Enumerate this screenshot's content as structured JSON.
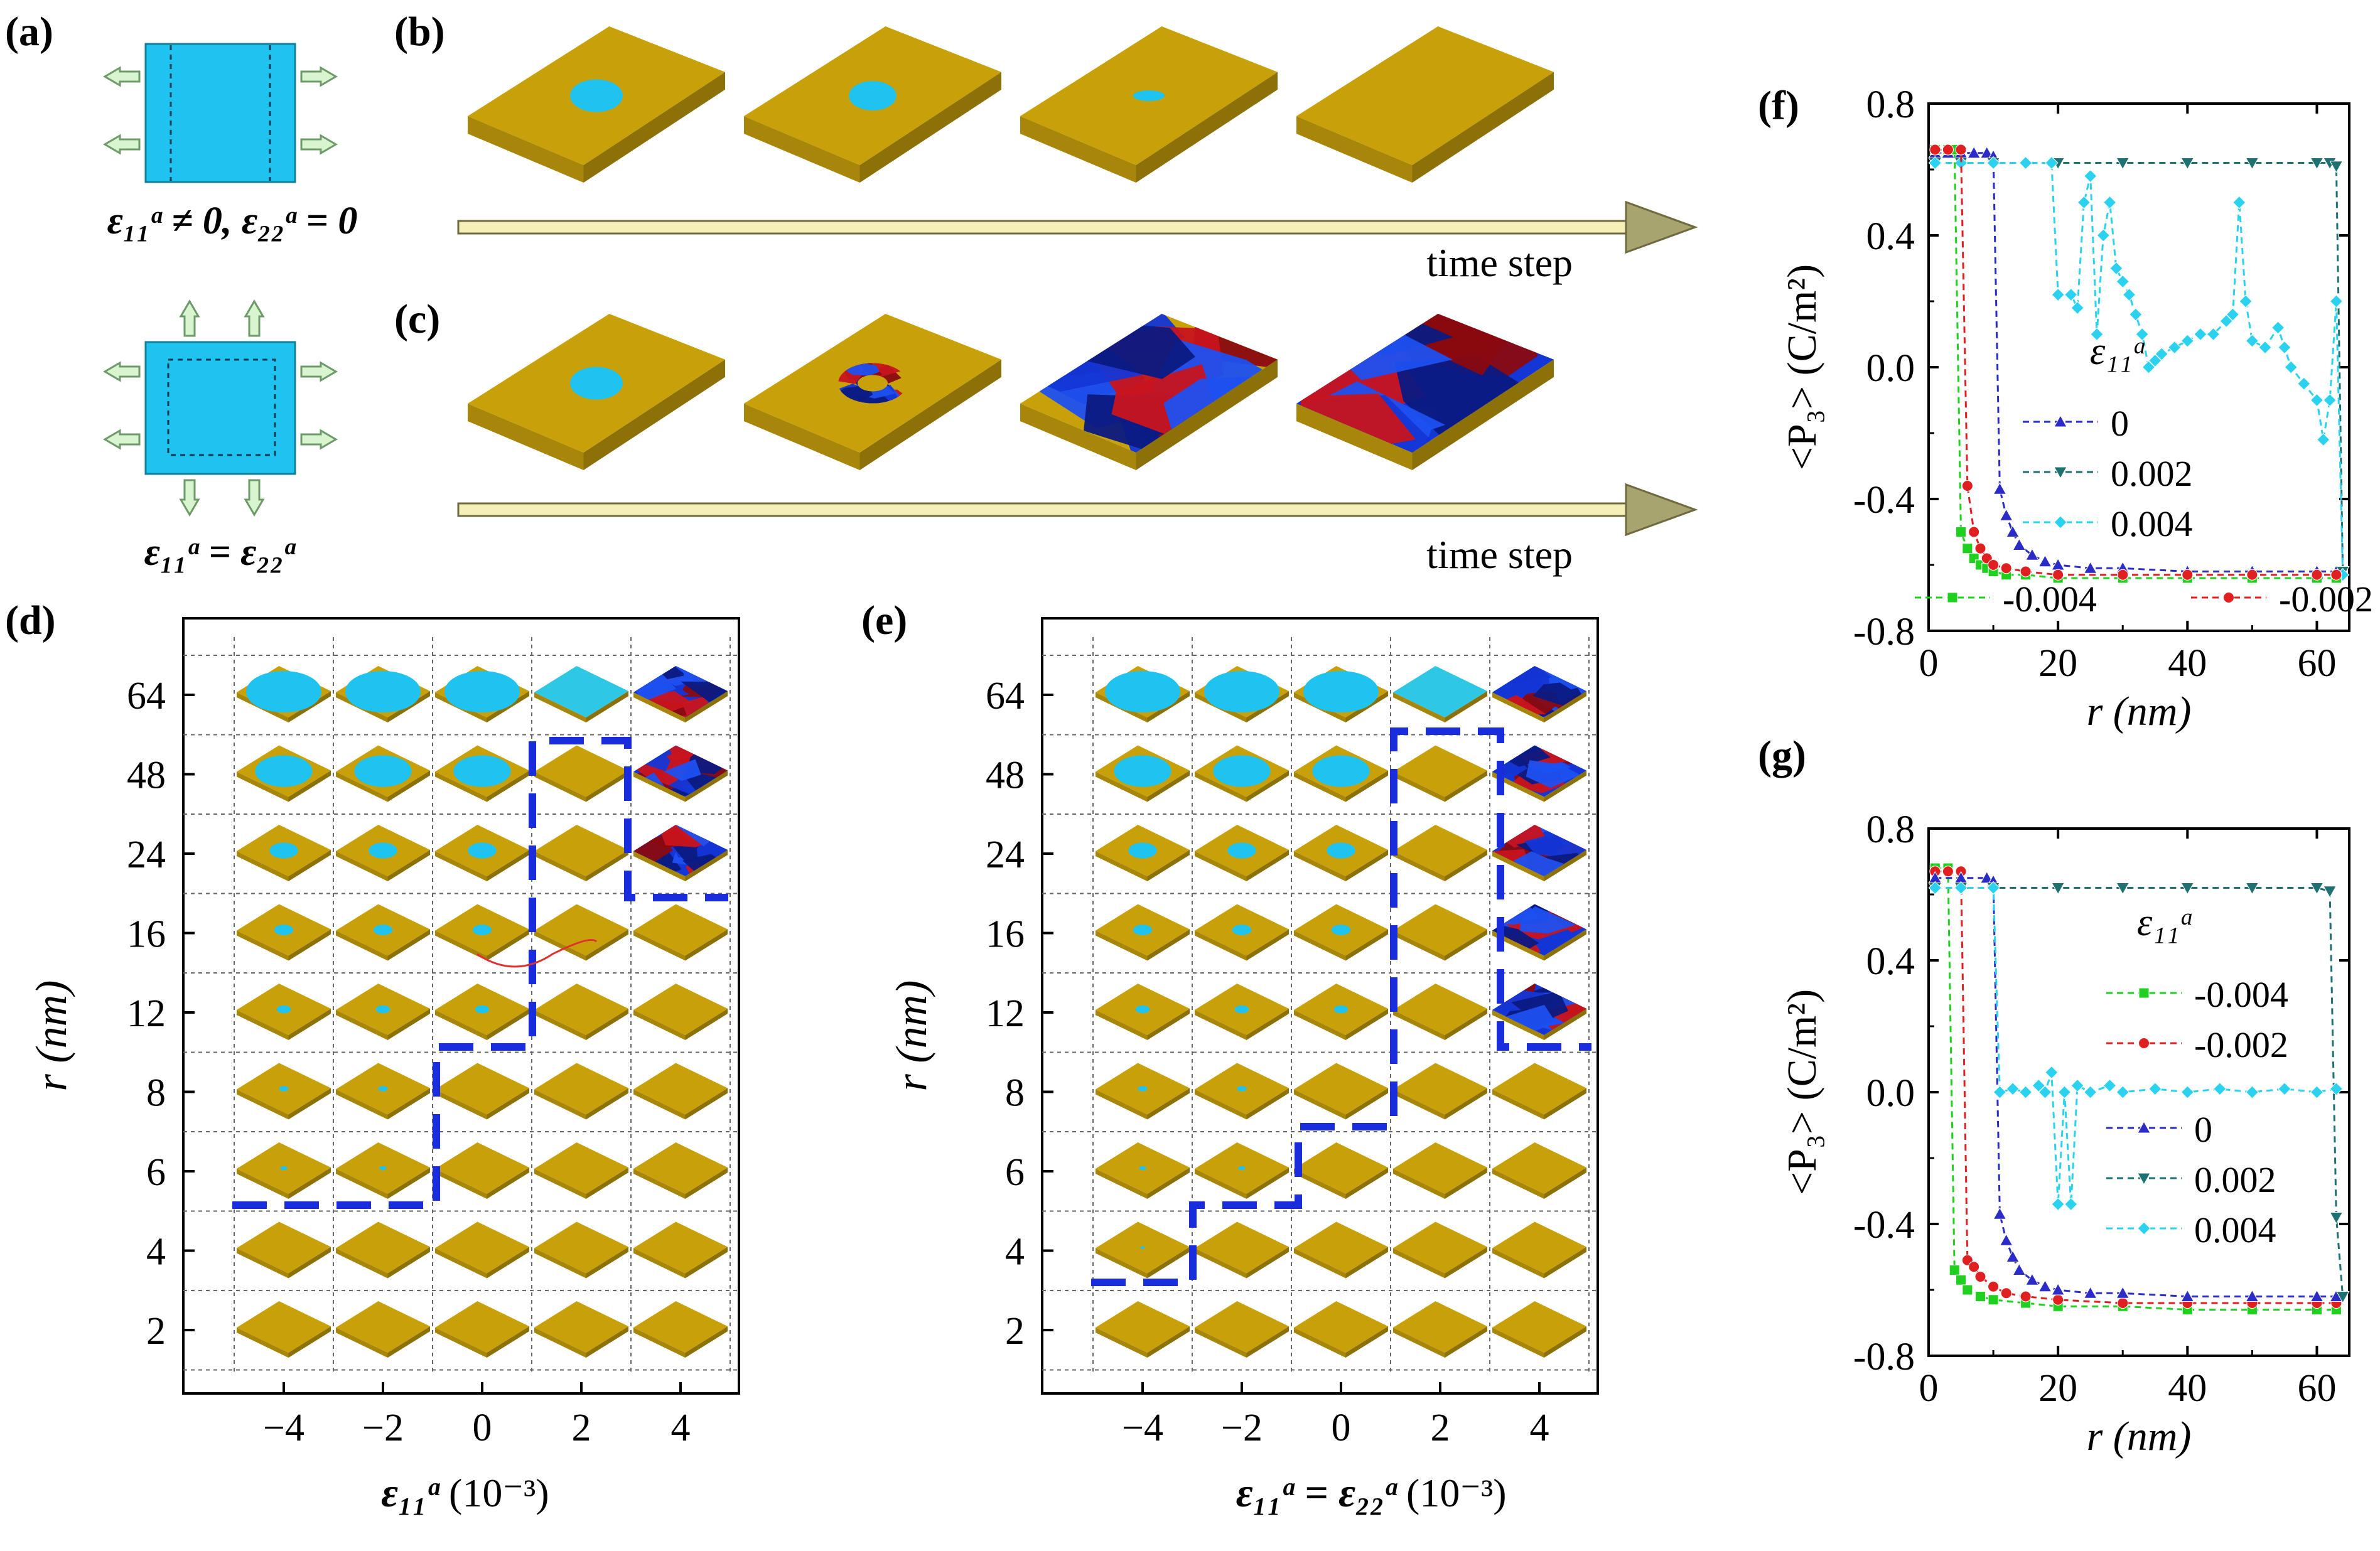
{
  "panel_labels": {
    "a": "(a)",
    "b": "(b)",
    "c": "(c)",
    "d": "(d)",
    "e": "(e)",
    "f": "(f)",
    "g": "(g)"
  },
  "panel_a": {
    "eq_top": "ε₁₁ᵃ ≠ 0, ε₂₂ᵃ = 0",
    "eq_bottom": "ε₁₁ᵃ = ε₂₂ᵃ",
    "colors": {
      "film": "#1ec3f0",
      "arrow": "#d8f5d0",
      "arrow_stroke": "#6e9a6a"
    }
  },
  "panel_b": {
    "arrow_label": "time step",
    "circle_scales": [
      1,
      0.9,
      0.6,
      0
    ]
  },
  "panel_c": {
    "arrow_label": "time step"
  },
  "panel_d": {
    "xlabel_main": "ε₁₁ᵃ",
    "xlabel_unit": "(10⁻³)",
    "ylabel": "r (nm)",
    "x_ticks": [
      "−4",
      "−2",
      "0",
      "2",
      "4"
    ],
    "y_ticks": [
      "64",
      "48",
      "24",
      "16",
      "12",
      "8",
      "6",
      "4",
      "2"
    ],
    "circle_radius_nm": [
      64,
      48,
      24,
      16,
      12,
      8,
      6,
      4,
      2
    ],
    "grid_state": [
      [
        "C",
        "C",
        "C",
        "F",
        "D"
      ],
      [
        "C",
        "C",
        "C",
        "Y",
        "D"
      ],
      [
        "C",
        "C",
        "C",
        "Y",
        "D"
      ],
      [
        "C",
        "C",
        "C",
        "Y",
        "Y"
      ],
      [
        "C",
        "C",
        "C",
        "Y",
        "Y"
      ],
      [
        "C",
        "C",
        "Y",
        "Y",
        "Y"
      ],
      [
        "C",
        "C",
        "Y",
        "Y",
        "Y"
      ],
      [
        "Y",
        "Y",
        "Y",
        "Y",
        "Y"
      ],
      [
        "Y",
        "Y",
        "Y",
        "Y",
        "Y"
      ]
    ]
  },
  "panel_e": {
    "xlabel_main": "ε₁₁ᵃ = ε₂₂ᵃ",
    "xlabel_unit": "(10⁻³)",
    "ylabel": "r (nm)",
    "x_ticks": [
      "−4",
      "−2",
      "0",
      "2",
      "4"
    ],
    "y_ticks": [
      "64",
      "48",
      "24",
      "16",
      "12",
      "8",
      "6",
      "4",
      "2"
    ],
    "grid_state": [
      [
        "C",
        "C",
        "C",
        "F",
        "D"
      ],
      [
        "C",
        "C",
        "C",
        "Y",
        "D"
      ],
      [
        "C",
        "C",
        "C",
        "Y",
        "D"
      ],
      [
        "C",
        "C",
        "C",
        "Y",
        "D"
      ],
      [
        "C",
        "C",
        "C",
        "Y",
        "D"
      ],
      [
        "C",
        "C",
        "Y",
        "Y",
        "Y"
      ],
      [
        "C",
        "C",
        "Y",
        "Y",
        "Y"
      ],
      [
        "C",
        "Y",
        "Y",
        "Y",
        "Y"
      ],
      [
        "Y",
        "Y",
        "Y",
        "Y",
        "Y"
      ]
    ]
  },
  "panel_f": {
    "ylabel": "<P₃> (C/m²)",
    "xlabel": "r (nm)",
    "legend_title": "ε₁₁ᵃ",
    "legend": [
      "0",
      "0.002",
      "0.004",
      "-0.004",
      "-0.002"
    ]
  },
  "panel_g": {
    "ylabel": "<P₃> (C/m²)",
    "xlabel": "r (nm)",
    "legend_title": "ε₁₁ᵃ",
    "legend": [
      "-0.004",
      "-0.002",
      "0",
      "0.002",
      "0.004"
    ]
  },
  "chart_data": [
    {
      "panel": "f",
      "type": "line",
      "title": "",
      "xlabel": "r (nm)",
      "ylabel": "<P3> (C/m2)",
      "xlim": [
        0,
        65
      ],
      "ylim": [
        -0.8,
        0.8
      ],
      "x_ticks": [
        0,
        20,
        40,
        60
      ],
      "y_ticks": [
        -0.8,
        -0.4,
        0.0,
        0.4,
        0.8
      ],
      "y_tick_labels": [
        "-0.8",
        "-0.4",
        "0.0",
        "0.4",
        "0.8"
      ],
      "series": [
        {
          "name": "0",
          "color": "#2b2bc8",
          "points": [
            [
              1,
              0.65
            ],
            [
              3,
              0.65
            ],
            [
              5,
              0.65
            ],
            [
              7,
              0.65
            ],
            [
              9,
              0.65
            ],
            [
              10,
              0.64
            ],
            [
              11,
              -0.37
            ],
            [
              12,
              -0.45
            ],
            [
              13,
              -0.5
            ],
            [
              14,
              -0.54
            ],
            [
              16,
              -0.57
            ],
            [
              18,
              -0.59
            ],
            [
              20,
              -0.6
            ],
            [
              25,
              -0.61
            ],
            [
              30,
              -0.61
            ],
            [
              40,
              -0.62
            ],
            [
              50,
              -0.62
            ],
            [
              60,
              -0.62
            ],
            [
              63,
              -0.62
            ]
          ]
        },
        {
          "name": "0.002",
          "color": "#1f7070",
          "points": [
            [
              1,
              0.62
            ],
            [
              5,
              0.62
            ],
            [
              10,
              0.62
            ],
            [
              20,
              0.62
            ],
            [
              30,
              0.62
            ],
            [
              40,
              0.62
            ],
            [
              50,
              0.62
            ],
            [
              60,
              0.62
            ],
            [
              62,
              0.62
            ],
            [
              63,
              0.61
            ],
            [
              64,
              -0.62
            ]
          ]
        },
        {
          "name": "0.004",
          "color": "#2ad2f0",
          "points": [
            [
              1,
              0.62
            ],
            [
              5,
              0.62
            ],
            [
              10,
              0.62
            ],
            [
              15,
              0.62
            ],
            [
              19,
              0.62
            ],
            [
              20,
              0.22
            ],
            [
              22,
              0.22
            ],
            [
              23,
              0.18
            ],
            [
              24,
              0.5
            ],
            [
              25,
              0.58
            ],
            [
              26,
              0.1
            ],
            [
              27,
              0.4
            ],
            [
              28,
              0.5
            ],
            [
              29,
              0.3
            ],
            [
              30,
              0.26
            ],
            [
              31,
              0.22
            ],
            [
              32,
              0.16
            ],
            [
              33,
              0.1
            ],
            [
              34,
              0.0
            ],
            [
              35,
              0.02
            ],
            [
              36,
              0.04
            ],
            [
              38,
              0.06
            ],
            [
              40,
              0.08
            ],
            [
              42,
              0.1
            ],
            [
              44,
              0.1
            ],
            [
              46,
              0.14
            ],
            [
              47,
              0.16
            ],
            [
              48,
              0.5
            ],
            [
              49,
              0.2
            ],
            [
              50,
              0.08
            ],
            [
              52,
              0.06
            ],
            [
              54,
              0.12
            ],
            [
              55,
              0.06
            ],
            [
              56,
              0.0
            ],
            [
              58,
              -0.05
            ],
            [
              60,
              -0.1
            ],
            [
              61,
              -0.22
            ],
            [
              62,
              -0.1
            ],
            [
              63,
              0.2
            ],
            [
              64,
              -0.63
            ]
          ]
        },
        {
          "name": "-0.004",
          "color": "#1fd01f",
          "points": [
            [
              1,
              0.66
            ],
            [
              3,
              0.66
            ],
            [
              4,
              0.66
            ],
            [
              5,
              -0.5
            ],
            [
              6,
              -0.55
            ],
            [
              7,
              -0.58
            ],
            [
              8,
              -0.6
            ],
            [
              9,
              -0.61
            ],
            [
              10,
              -0.62
            ],
            [
              12,
              -0.63
            ],
            [
              15,
              -0.63
            ],
            [
              20,
              -0.64
            ],
            [
              30,
              -0.64
            ],
            [
              40,
              -0.64
            ],
            [
              50,
              -0.64
            ],
            [
              60,
              -0.64
            ],
            [
              63,
              -0.64
            ]
          ]
        },
        {
          "name": "-0.002",
          "color": "#e02020",
          "points": [
            [
              1,
              0.66
            ],
            [
              3,
              0.66
            ],
            [
              5,
              0.66
            ],
            [
              6,
              -0.36
            ],
            [
              7,
              -0.5
            ],
            [
              8,
              -0.55
            ],
            [
              9,
              -0.58
            ],
            [
              10,
              -0.6
            ],
            [
              12,
              -0.61
            ],
            [
              15,
              -0.62
            ],
            [
              20,
              -0.63
            ],
            [
              30,
              -0.63
            ],
            [
              40,
              -0.63
            ],
            [
              50,
              -0.63
            ],
            [
              60,
              -0.63
            ],
            [
              63,
              -0.63
            ]
          ]
        }
      ]
    },
    {
      "panel": "g",
      "type": "line",
      "title": "",
      "xlabel": "r (nm)",
      "ylabel": "<P3> (C/m2)",
      "xlim": [
        0,
        65
      ],
      "ylim": [
        -0.8,
        0.8
      ],
      "x_ticks": [
        0,
        20,
        40,
        60
      ],
      "y_ticks": [
        -0.8,
        -0.4,
        0.0,
        0.4,
        0.8
      ],
      "y_tick_labels": [
        "-0.8",
        "-0.4",
        "0.0",
        "0.4",
        "0.8"
      ],
      "series": [
        {
          "name": "-0.004",
          "color": "#1fd01f",
          "points": [
            [
              1,
              0.68
            ],
            [
              3,
              0.68
            ],
            [
              4,
              -0.54
            ],
            [
              5,
              -0.57
            ],
            [
              6,
              -0.6
            ],
            [
              8,
              -0.62
            ],
            [
              10,
              -0.63
            ],
            [
              15,
              -0.64
            ],
            [
              20,
              -0.65
            ],
            [
              30,
              -0.65
            ],
            [
              40,
              -0.66
            ],
            [
              50,
              -0.66
            ],
            [
              60,
              -0.66
            ],
            [
              63,
              -0.66
            ]
          ]
        },
        {
          "name": "-0.002",
          "color": "#e02020",
          "points": [
            [
              1,
              0.67
            ],
            [
              3,
              0.67
            ],
            [
              5,
              0.67
            ],
            [
              6,
              -0.51
            ],
            [
              7,
              -0.53
            ],
            [
              8,
              -0.56
            ],
            [
              10,
              -0.59
            ],
            [
              12,
              -0.61
            ],
            [
              15,
              -0.62
            ],
            [
              20,
              -0.63
            ],
            [
              30,
              -0.64
            ],
            [
              40,
              -0.64
            ],
            [
              50,
              -0.64
            ],
            [
              60,
              -0.64
            ],
            [
              63,
              -0.64
            ]
          ]
        },
        {
          "name": "0",
          "color": "#2b2bc8",
          "points": [
            [
              1,
              0.65
            ],
            [
              5,
              0.65
            ],
            [
              9,
              0.65
            ],
            [
              10,
              0.64
            ],
            [
              11,
              -0.37
            ],
            [
              12,
              -0.45
            ],
            [
              13,
              -0.5
            ],
            [
              14,
              -0.54
            ],
            [
              16,
              -0.57
            ],
            [
              18,
              -0.59
            ],
            [
              20,
              -0.6
            ],
            [
              25,
              -0.61
            ],
            [
              30,
              -0.61
            ],
            [
              40,
              -0.62
            ],
            [
              50,
              -0.62
            ],
            [
              60,
              -0.62
            ],
            [
              63,
              -0.62
            ]
          ]
        },
        {
          "name": "0.002",
          "color": "#1f7070",
          "points": [
            [
              1,
              0.62
            ],
            [
              5,
              0.62
            ],
            [
              10,
              0.62
            ],
            [
              20,
              0.62
            ],
            [
              30,
              0.62
            ],
            [
              40,
              0.62
            ],
            [
              50,
              0.62
            ],
            [
              60,
              0.62
            ],
            [
              62,
              0.61
            ],
            [
              63,
              -0.38
            ],
            [
              64,
              -0.62
            ]
          ]
        },
        {
          "name": "0.004",
          "color": "#2ad2f0",
          "points": [
            [
              1,
              0.62
            ],
            [
              5,
              0.62
            ],
            [
              10,
              0.62
            ],
            [
              11,
              0.0
            ],
            [
              13,
              0.01
            ],
            [
              15,
              0.0
            ],
            [
              17,
              0.02
            ],
            [
              18,
              0.0
            ],
            [
              19,
              0.06
            ],
            [
              20,
              -0.34
            ],
            [
              21,
              0.0
            ],
            [
              22,
              -0.34
            ],
            [
              23,
              0.02
            ],
            [
              25,
              0.0
            ],
            [
              28,
              0.02
            ],
            [
              30,
              0.0
            ],
            [
              35,
              0.01
            ],
            [
              40,
              0.0
            ],
            [
              45,
              0.01
            ],
            [
              50,
              0.0
            ],
            [
              55,
              0.01
            ],
            [
              60,
              0.0
            ],
            [
              63,
              0.01
            ]
          ]
        }
      ]
    }
  ]
}
